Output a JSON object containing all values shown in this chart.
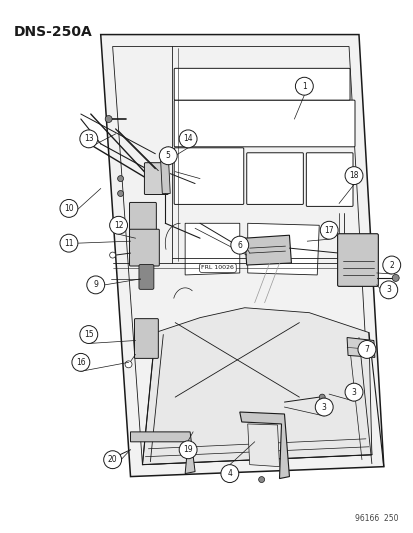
{
  "title": "DNS-250A",
  "footer": "96166  250",
  "bg": "#ffffff",
  "lc": "#1a1a1a",
  "door_fill": "#f0f0f0",
  "gray_fill": "#b0b0b0",
  "light_fill": "#e8e8e8",
  "figsize": [
    4.14,
    5.33
  ],
  "dpi": 100
}
